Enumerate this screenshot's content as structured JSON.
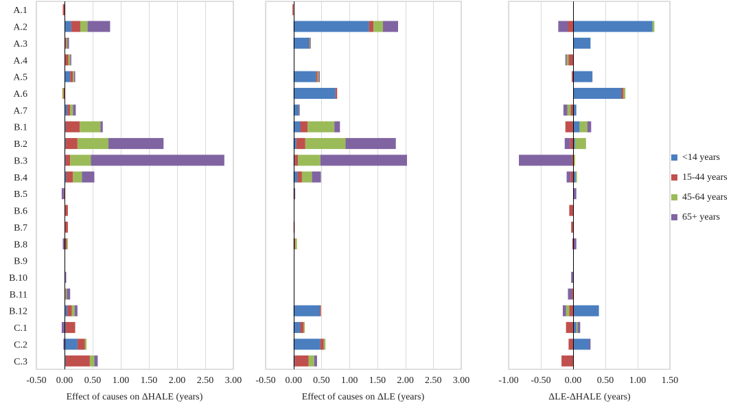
{
  "legend": {
    "items": [
      {
        "label": "<14 years",
        "color": "#4a7ebf"
      },
      {
        "label": "15-44 years",
        "color": "#c0504d"
      },
      {
        "label": "45-64 years",
        "color": "#9bbb59"
      },
      {
        "label": "65+ years",
        "color": "#8064a2"
      }
    ]
  },
  "chart_data": [
    {
      "type": "bar",
      "orientation": "horizontal",
      "stacked": true,
      "title": "",
      "xlabel": "Effect of causes on ΔHALE (years)",
      "xlim": [
        -0.5,
        3.0
      ],
      "xticks": [
        -0.5,
        0.0,
        0.5,
        1.0,
        1.5,
        2.0,
        2.5,
        3.0
      ],
      "xtick_labels": [
        "-0.50",
        "0.00",
        "0.50",
        "1.00",
        "1.50",
        "2.00",
        "2.50",
        "3.00"
      ],
      "grid": true,
      "show_category_labels": true,
      "categories": [
        "A.1",
        "A.2",
        "A.3",
        "A.4",
        "A.5",
        "A.6",
        "A.7",
        "B.1",
        "B.2",
        "B.3",
        "B.4",
        "B.5",
        "B.6",
        "B.7",
        "B.8",
        "B.9",
        "B.10",
        "B.11",
        "B.12",
        "C.1",
        "C.2",
        "C.3"
      ],
      "series": [
        {
          "name": "<14 years",
          "values": [
            0,
            0.12,
            0.01,
            0,
            0.1,
            0,
            0.05,
            0.02,
            0.02,
            0.02,
            0.03,
            0,
            0,
            0,
            0,
            0,
            0,
            0,
            0.05,
            0.02,
            0.23,
            0.02
          ]
        },
        {
          "name": "15-44 years",
          "values": [
            -0.03,
            0.16,
            0.02,
            0.07,
            0.05,
            -0.02,
            0.05,
            0.25,
            0.21,
            0.08,
            0.12,
            -0.01,
            0.06,
            0.06,
            0.04,
            0,
            0,
            0.02,
            0.08,
            0.17,
            0.13,
            0.43
          ]
        },
        {
          "name": "45-64 years",
          "values": [
            0,
            0.13,
            0.02,
            0.03,
            0.02,
            -0.02,
            0.05,
            0.37,
            0.55,
            0.37,
            0.16,
            0,
            0,
            0,
            0.02,
            0,
            0,
            0.02,
            0.05,
            0,
            0.03,
            0.08
          ]
        },
        {
          "name": "65+ years",
          "values": [
            0,
            0.4,
            0.03,
            0.02,
            0.02,
            0,
            0.05,
            0.04,
            0.98,
            2.37,
            0.22,
            -0.04,
            0,
            0,
            -0.03,
            0,
            0.03,
            0.06,
            0.05,
            -0.05,
            -0.02,
            0.06
          ]
        }
      ]
    },
    {
      "type": "bar",
      "orientation": "horizontal",
      "stacked": true,
      "title": "",
      "xlabel": "Effect of causes on ΔLE (years)",
      "xlim": [
        -0.5,
        3.0
      ],
      "xticks": [
        -0.5,
        0.0,
        0.5,
        1.0,
        1.5,
        2.0,
        2.5,
        3.0
      ],
      "xtick_labels": [
        "-0.50",
        "0.00",
        "0.50",
        "1.00",
        "1.50",
        "2.00",
        "2.50",
        "3.00"
      ],
      "grid": true,
      "show_category_labels": false,
      "categories": [
        "A.1",
        "A.2",
        "A.3",
        "A.4",
        "A.5",
        "A.6",
        "A.7",
        "B.1",
        "B.2",
        "B.3",
        "B.4",
        "B.5",
        "B.6",
        "B.7",
        "B.8",
        "B.9",
        "B.10",
        "B.11",
        "B.12",
        "C.1",
        "C.2",
        "C.3"
      ],
      "series": [
        {
          "name": "<14 years",
          "values": [
            0,
            1.35,
            0.28,
            0,
            0.4,
            0.75,
            0.1,
            0.12,
            0.05,
            0.02,
            0.07,
            0,
            0,
            0,
            0,
            0,
            0,
            0,
            0.47,
            0.12,
            0.48,
            0.02
          ]
        },
        {
          "name": "15-44 years",
          "values": [
            -0.02,
            0.08,
            0.01,
            0,
            0.03,
            0.03,
            0.01,
            0.13,
            0.16,
            0.06,
            0.08,
            0.01,
            0,
            0.02,
            0.03,
            0,
            0,
            0,
            0.02,
            0.06,
            0.06,
            0.25
          ]
        },
        {
          "name": "45-64 years",
          "values": [
            0,
            0.17,
            0.01,
            0,
            0.02,
            0,
            0,
            0.48,
            0.72,
            0.4,
            0.18,
            0,
            0,
            0,
            0.03,
            0,
            0,
            0,
            0,
            0.02,
            0.03,
            0.1
          ]
        },
        {
          "name": "65+ years",
          "values": [
            0,
            0.27,
            0.01,
            0,
            0.02,
            0,
            0,
            0.1,
            0.9,
            1.55,
            0.16,
            0.02,
            0,
            0,
            0,
            0,
            0,
            0,
            0,
            0,
            0,
            0.05
          ]
        }
      ]
    },
    {
      "type": "bar",
      "orientation": "horizontal",
      "stacked": true,
      "title": "",
      "xlabel": "ΔLE-ΔHALE (years)",
      "xlim": [
        -1.0,
        1.5
      ],
      "xticks": [
        -1.0,
        -0.5,
        0.0,
        0.5,
        1.0,
        1.5
      ],
      "xtick_labels": [
        "-1.00",
        "-0.50",
        "0.00",
        "0.50",
        "1.00",
        "1.50"
      ],
      "grid": true,
      "show_category_labels": false,
      "categories": [
        "A.1",
        "A.2",
        "A.3",
        "A.4",
        "A.5",
        "A.6",
        "A.7",
        "B.1",
        "B.2",
        "B.3",
        "B.4",
        "B.5",
        "B.6",
        "B.7",
        "B.8",
        "B.9",
        "B.10",
        "B.11",
        "B.12",
        "C.1",
        "C.2",
        "C.3"
      ],
      "series": [
        {
          "name": "<14 years",
          "values": [
            0,
            1.23,
            0.27,
            0,
            0.3,
            0.75,
            0.05,
            0.1,
            0.03,
            0,
            0.04,
            0,
            0,
            0,
            0,
            0,
            0,
            0,
            0.4,
            0.05,
            0.25,
            0
          ]
        },
        {
          "name": "15-44 years",
          "values": [
            0.01,
            -0.08,
            0,
            -0.07,
            -0.02,
            0.03,
            -0.04,
            -0.12,
            -0.05,
            -0.02,
            -0.04,
            0,
            -0.06,
            -0.03,
            -0.01,
            0,
            0,
            -0.02,
            -0.06,
            -0.11,
            -0.07,
            -0.18
          ]
        },
        {
          "name": "45-64 years",
          "values": [
            0,
            0.03,
            0,
            -0.03,
            0,
            0.03,
            -0.05,
            0.12,
            0.17,
            0.03,
            0.02,
            0,
            0,
            0,
            0.01,
            0,
            0,
            0,
            -0.05,
            0.02,
            0,
            0
          ]
        },
        {
          "name": "65+ years",
          "values": [
            0,
            -0.15,
            0,
            -0.02,
            0,
            0,
            -0.06,
            0.06,
            -0.08,
            -0.82,
            -0.06,
            0.05,
            0,
            0,
            0.04,
            0,
            -0.03,
            -0.06,
            -0.05,
            0.04,
            0.02,
            0
          ]
        }
      ]
    }
  ]
}
